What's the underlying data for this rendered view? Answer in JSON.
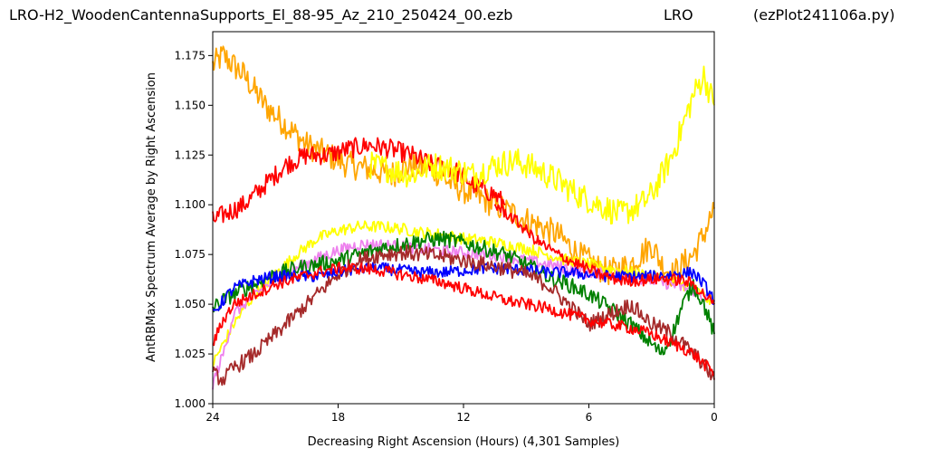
{
  "header": {
    "file_name": "LRO-H2_WoodenCantennaSupports_El_88-95_Az_210_250424_00.ezb",
    "site": "LRO",
    "script": "(ezPlot241106a.py)"
  },
  "chart_data": {
    "type": "line",
    "xlabel": "Decreasing Right Ascension (Hours) (4,301 Samples)",
    "ylabel": "AntRBMax Spectrum Average by Right Ascension",
    "xlim": [
      24,
      0
    ],
    "ylim": [
      1.0,
      1.187
    ],
    "x_ticks": [
      24,
      18,
      12,
      6,
      0
    ],
    "y_ticks": [
      1.0,
      1.025,
      1.05,
      1.075,
      1.1,
      1.125,
      1.15,
      1.175
    ],
    "x_tick_labels": [
      "24",
      "18",
      "12",
      "6",
      "0"
    ],
    "y_tick_labels": [
      "1.000",
      "1.025",
      "1.050",
      "1.075",
      "1.100",
      "1.125",
      "1.150",
      "1.175"
    ],
    "grid": false,
    "legend": "none",
    "series": [
      {
        "color": "#ffa500",
        "noise": 0.007,
        "x": [
          24,
          23.5,
          22.5,
          21.5,
          20.5,
          19.5,
          18.5,
          17.5,
          16.5,
          15.5,
          14.5,
          13.5,
          12.5,
          11.5,
          10.5,
          9.5,
          8.5,
          7.5,
          6.5,
          5.5,
          5,
          4.5,
          4,
          3.5,
          3,
          2.5,
          2,
          1.5,
          1,
          0.5,
          0
        ],
        "y": [
          1.17,
          1.175,
          1.165,
          1.15,
          1.14,
          1.13,
          1.125,
          1.12,
          1.118,
          1.115,
          1.12,
          1.118,
          1.11,
          1.105,
          1.1,
          1.095,
          1.09,
          1.085,
          1.075,
          1.068,
          1.066,
          1.068,
          1.07,
          1.075,
          1.08,
          1.07,
          1.065,
          1.07,
          1.075,
          1.085,
          1.098
        ]
      },
      {
        "color": "#ff0000",
        "noise": 0.005,
        "x": [
          24,
          23.5,
          22.5,
          21.5,
          20.5,
          19.5,
          18.5,
          17.5,
          16.5,
          15.5,
          14.5,
          13.5,
          12.5,
          11.5,
          10.5,
          10
        ],
        "y": [
          1.092,
          1.095,
          1.1,
          1.11,
          1.12,
          1.125,
          1.125,
          1.128,
          1.13,
          1.128,
          1.125,
          1.12,
          1.118,
          1.11,
          1.105,
          1.1
        ]
      },
      {
        "color": "#ffff00",
        "noise": 0.007,
        "x": [
          16.5,
          15.5,
          14.5,
          13.5,
          12.5,
          11.5,
          10.5,
          9.5,
          8.5,
          7.5,
          6.5,
          5.5,
          4.5,
          3.5,
          3,
          2.5,
          2,
          1.5,
          1,
          0.5,
          0
        ],
        "y": [
          1.12,
          1.118,
          1.115,
          1.12,
          1.118,
          1.115,
          1.12,
          1.122,
          1.118,
          1.112,
          1.105,
          1.1,
          1.095,
          1.1,
          1.105,
          1.115,
          1.125,
          1.14,
          1.155,
          1.165,
          1.15
        ]
      },
      {
        "color": "#ffff00",
        "noise": 0.003,
        "x": [
          24,
          23.5,
          23,
          22,
          21,
          20,
          19,
          18,
          17,
          16,
          15,
          14,
          13,
          12,
          11,
          10,
          9,
          8,
          7,
          6,
          5,
          4,
          3,
          2,
          1,
          0
        ],
        "y": [
          1.02,
          1.03,
          1.04,
          1.055,
          1.065,
          1.075,
          1.083,
          1.087,
          1.089,
          1.089,
          1.088,
          1.086,
          1.085,
          1.083,
          1.082,
          1.08,
          1.078,
          1.075,
          1.072,
          1.07,
          1.068,
          1.066,
          1.064,
          1.062,
          1.058,
          1.05
        ]
      },
      {
        "color": "#ee82ee",
        "noise": 0.003,
        "x": [
          24,
          23.5,
          23,
          22,
          21,
          20,
          19,
          18,
          17,
          16,
          15,
          14,
          13,
          12,
          11,
          10,
          9,
          8,
          7,
          6,
          5,
          4,
          3,
          2,
          1,
          0
        ],
        "y": [
          1.01,
          1.025,
          1.045,
          1.055,
          1.062,
          1.068,
          1.073,
          1.077,
          1.08,
          1.08,
          1.079,
          1.078,
          1.077,
          1.076,
          1.075,
          1.074,
          1.072,
          1.07,
          1.068,
          1.066,
          1.065,
          1.064,
          1.062,
          1.06,
          1.057,
          1.05
        ]
      },
      {
        "color": "#008000",
        "noise": 0.004,
        "x": [
          24,
          23.5,
          23,
          22,
          21,
          20,
          19,
          18,
          17,
          16,
          15,
          14,
          13,
          12,
          11,
          10,
          9,
          8,
          7,
          6,
          5,
          4,
          3,
          2.5,
          2,
          1.5,
          1,
          0.5,
          0
        ],
        "y": [
          1.048,
          1.052,
          1.055,
          1.06,
          1.065,
          1.068,
          1.07,
          1.072,
          1.075,
          1.078,
          1.08,
          1.082,
          1.083,
          1.081,
          1.078,
          1.075,
          1.07,
          1.064,
          1.06,
          1.055,
          1.048,
          1.04,
          1.03,
          1.025,
          1.035,
          1.05,
          1.06,
          1.05,
          1.035
        ]
      },
      {
        "color": "#0000ff",
        "noise": 0.003,
        "x": [
          24,
          23.5,
          23,
          22,
          21,
          20,
          19,
          18,
          17,
          16,
          15,
          14,
          13,
          12,
          11,
          10,
          9,
          8,
          7,
          6,
          5,
          4,
          3,
          2,
          1,
          0.5,
          0
        ],
        "y": [
          1.045,
          1.052,
          1.058,
          1.062,
          1.064,
          1.064,
          1.064,
          1.066,
          1.068,
          1.068,
          1.067,
          1.066,
          1.066,
          1.067,
          1.068,
          1.068,
          1.067,
          1.066,
          1.066,
          1.065,
          1.064,
          1.064,
          1.064,
          1.065,
          1.066,
          1.06,
          1.052
        ]
      },
      {
        "color": "#a52a2a",
        "noise": 0.004,
        "x": [
          24,
          23.5,
          23,
          22,
          21,
          20,
          19,
          18,
          17,
          16,
          15,
          14,
          13,
          12,
          11,
          10,
          9,
          8,
          7,
          6,
          5,
          4,
          3.5,
          3,
          2,
          1.5,
          1,
          0.5,
          0
        ],
        "y": [
          1.015,
          1.012,
          1.018,
          1.025,
          1.035,
          1.045,
          1.055,
          1.065,
          1.072,
          1.075,
          1.076,
          1.075,
          1.074,
          1.072,
          1.07,
          1.068,
          1.065,
          1.06,
          1.05,
          1.04,
          1.045,
          1.05,
          1.045,
          1.04,
          1.035,
          1.03,
          1.025,
          1.02,
          1.012
        ]
      },
      {
        "color": "#ff0000",
        "noise": 0.003,
        "x": [
          24,
          23.5,
          23,
          22,
          21,
          20,
          19,
          18,
          17,
          16,
          15,
          14,
          13,
          12,
          11,
          10,
          9,
          8,
          7,
          6,
          5,
          4,
          3,
          2,
          1.5,
          1,
          0.5,
          0
        ],
        "y": [
          1.03,
          1.042,
          1.05,
          1.055,
          1.06,
          1.063,
          1.066,
          1.068,
          1.068,
          1.067,
          1.065,
          1.063,
          1.061,
          1.058,
          1.055,
          1.052,
          1.05,
          1.048,
          1.045,
          1.042,
          1.04,
          1.038,
          1.035,
          1.03,
          1.028,
          1.025,
          1.02,
          1.015
        ]
      },
      {
        "color": "#ff0000",
        "noise": 0.003,
        "x": [
          10.5,
          9.5,
          8.5,
          7.5,
          6.5,
          5.5,
          4.5,
          3.5,
          2.5,
          1.5,
          1,
          0.5,
          0
        ],
        "y": [
          1.1,
          1.092,
          1.082,
          1.075,
          1.07,
          1.065,
          1.062,
          1.062,
          1.063,
          1.062,
          1.06,
          1.055,
          1.05
        ]
      }
    ]
  }
}
